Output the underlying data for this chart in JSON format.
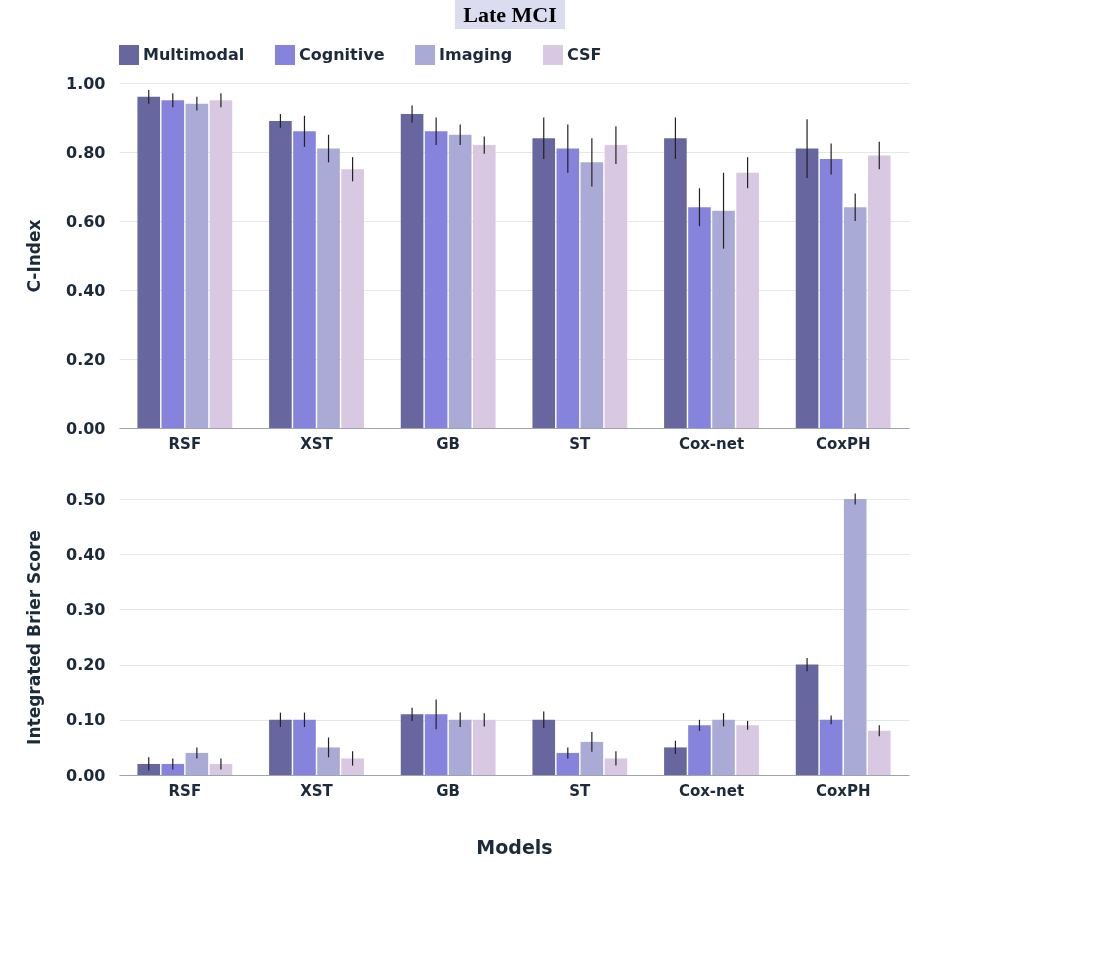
{
  "chart_data": [
    {
      "type": "bar",
      "title": "Late MCI",
      "ylabel": "C-Index",
      "categories": [
        "RSF",
        "XST",
        "GB",
        "ST",
        "Cox-net",
        "CoxPH"
      ],
      "ylim": [
        0,
        1
      ],
      "yticks": [
        {
          "value": 0,
          "label": "0.00"
        },
        {
          "value": 0.2,
          "label": "0.20"
        },
        {
          "value": 0.4,
          "label": "0.40"
        },
        {
          "value": 0.6,
          "label": "0.60"
        },
        {
          "value": 0.8,
          "label": "0.80"
        },
        {
          "value": 1,
          "label": "1.00"
        }
      ],
      "grid": "y",
      "legend": "top",
      "series": [
        {
          "name": "Multimodal",
          "color": "#67669f",
          "values": [
            0.96,
            0.89,
            0.91,
            0.84,
            0.84,
            0.81
          ],
          "errors": [
            0.02,
            0.02,
            0.025,
            0.06,
            0.06,
            0.085
          ]
        },
        {
          "name": "Cognitive",
          "color": "#8583dc",
          "values": [
            0.95,
            0.86,
            0.86,
            0.81,
            0.64,
            0.78
          ],
          "errors": [
            0.02,
            0.045,
            0.04,
            0.07,
            0.055,
            0.045
          ]
        },
        {
          "name": "Imaging",
          "color": "#aaaad6",
          "values": [
            0.94,
            0.81,
            0.85,
            0.77,
            0.63,
            0.64
          ],
          "errors": [
            0.02,
            0.04,
            0.03,
            0.07,
            0.11,
            0.04
          ]
        },
        {
          "name": "CSF",
          "color": "#d9c8e2",
          "values": [
            0.95,
            0.75,
            0.82,
            0.82,
            0.74,
            0.79
          ],
          "errors": [
            0.02,
            0.035,
            0.025,
            0.055,
            0.045,
            0.04
          ]
        }
      ]
    },
    {
      "type": "bar",
      "xlabel": "Models",
      "ylabel": "Integrated Brier Score",
      "categories": [
        "RSF",
        "XST",
        "GB",
        "ST",
        "Cox-net",
        "CoxPH"
      ],
      "ylim": [
        0,
        0.5
      ],
      "yticks": [
        {
          "value": 0,
          "label": "0.00"
        },
        {
          "value": 0.1,
          "label": "0.10"
        },
        {
          "value": 0.2,
          "label": "0.20"
        },
        {
          "value": 0.3,
          "label": "0.30"
        },
        {
          "value": 0.4,
          "label": "0.40"
        },
        {
          "value": 0.5,
          "label": "0.50"
        }
      ],
      "grid": "y",
      "series": [
        {
          "color": "#67669f",
          "values": [
            0.02,
            0.1,
            0.11,
            0.1,
            0.05,
            0.2
          ],
          "errors": [
            0.012,
            0.013,
            0.012,
            0.015,
            0.012,
            0.012
          ]
        },
        {
          "color": "#8583dc",
          "values": [
            0.02,
            0.1,
            0.11,
            0.04,
            0.09,
            0.1
          ],
          "errors": [
            0.01,
            0.013,
            0.027,
            0.01,
            0.01,
            0.008
          ]
        },
        {
          "color": "#aaaad6",
          "values": [
            0.04,
            0.05,
            0.1,
            0.06,
            0.1,
            0.5
          ],
          "errors": [
            0.01,
            0.018,
            0.013,
            0.018,
            0.012,
            0.01
          ]
        },
        {
          "color": "#d9c8e2",
          "values": [
            0.02,
            0.03,
            0.1,
            0.03,
            0.09,
            0.08
          ],
          "errors": [
            0.01,
            0.013,
            0.012,
            0.013,
            0.008,
            0.01
          ]
        }
      ]
    }
  ]
}
